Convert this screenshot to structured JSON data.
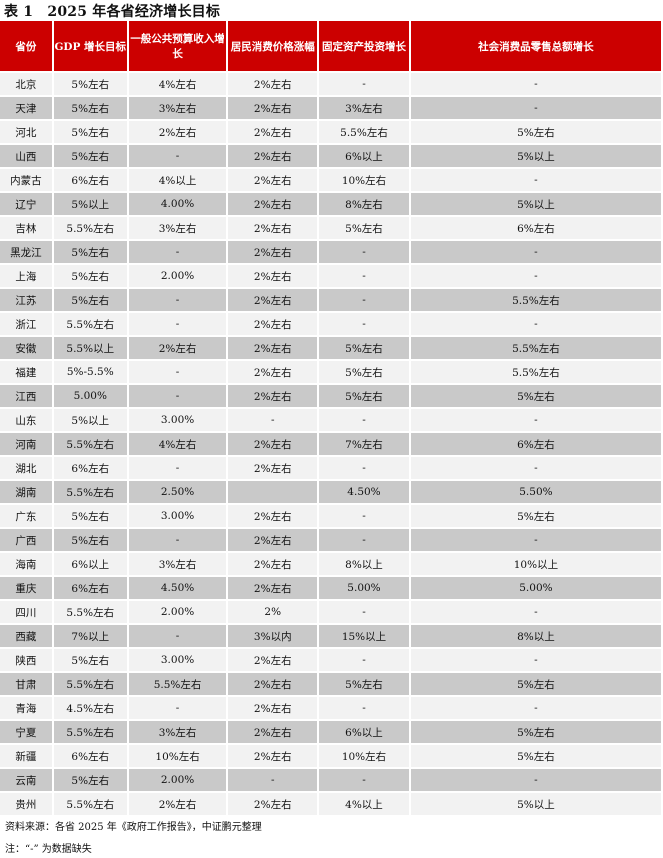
{
  "title": "表 1　2025 年各省经济增长目标",
  "columns": [
    "省份",
    "GDP 增长目标",
    "一般公共预算收入增长",
    "居民消费价格涨幅",
    "固定资产投资增长",
    "社会消费品零售总额增长"
  ],
  "rows": [
    [
      "北京",
      "5%左右",
      "4%左右",
      "2%左右",
      "-",
      "-"
    ],
    [
      "天津",
      "5%左右",
      "3%左右",
      "2%左右",
      "3%左右",
      "-"
    ],
    [
      "河北",
      "5%左右",
      "2%左右",
      "2%左右",
      "5.5%左右",
      "5%左右"
    ],
    [
      "山西",
      "5%左右",
      "-",
      "2%左右",
      "6%以上",
      "5%以上"
    ],
    [
      "内蒙古",
      "6%左右",
      "4%以上",
      "2%左右",
      "10%左右",
      "-"
    ],
    [
      "辽宁",
      "5%以上",
      "4.00%",
      "2%左右",
      "8%左右",
      "5%以上"
    ],
    [
      "吉林",
      "5.5%左右",
      "3%左右",
      "2%左右",
      "5%左右",
      "6%左右"
    ],
    [
      "黑龙江",
      "5%左右",
      "-",
      "2%左右",
      "-",
      "-"
    ],
    [
      "上海",
      "5%左右",
      "2.00%",
      "2%左右",
      "-",
      "-"
    ],
    [
      "江苏",
      "5%左右",
      "-",
      "2%左右",
      "-",
      "5.5%左右"
    ],
    [
      "浙江",
      "5.5%左右",
      "-",
      "2%左右",
      "-",
      "-"
    ],
    [
      "安徽",
      "5.5%以上",
      "2%左右",
      "2%左右",
      "5%左右",
      "5.5%左右"
    ],
    [
      "福建",
      "5%-5.5%",
      "-",
      "2%左右",
      "5%左右",
      "5.5%左右"
    ],
    [
      "江西",
      "5.00%",
      "-",
      "2%左右",
      "5%左右",
      "5%左右"
    ],
    [
      "山东",
      "5%以上",
      "3.00%",
      "-",
      "-",
      "-"
    ],
    [
      "河南",
      "5.5%左右",
      "4%左右",
      "2%左右",
      "7%左右",
      "6%左右"
    ],
    [
      "湖北",
      "6%左右",
      "-",
      "2%左右",
      "-",
      "-"
    ],
    [
      "湖南",
      "5.5%左右",
      "2.50%",
      "",
      "4.50%",
      "5.50%"
    ],
    [
      "广东",
      "5%左右",
      "3.00%",
      "2%左右",
      "-",
      "5%左右"
    ],
    [
      "广西",
      "5%左右",
      "-",
      "2%左右",
      "-",
      "-"
    ],
    [
      "海南",
      "6%以上",
      "3%左右",
      "2%左右",
      "8%以上",
      "10%以上"
    ],
    [
      "重庆",
      "6%左右",
      "4.50%",
      "2%左右",
      "5.00%",
      "5.00%"
    ],
    [
      "四川",
      "5.5%左右",
      "2.00%",
      "2%",
      "-",
      "-"
    ],
    [
      "西藏",
      "7%以上",
      "-",
      "3%以内",
      "15%以上",
      "8%以上"
    ],
    [
      "陕西",
      "5%左右",
      "3.00%",
      "2%左右",
      "-",
      "-"
    ],
    [
      "甘肃",
      "5.5%左右",
      "5.5%左右",
      "2%左右",
      "5%左右",
      "5%左右"
    ],
    [
      "青海",
      "4.5%左右",
      "-",
      "2%左右",
      "-",
      "-"
    ],
    [
      "宁夏",
      "5.5%左右",
      "3%左右",
      "2%左右",
      "6%以上",
      "5%左右"
    ],
    [
      "新疆",
      "6%左右",
      "10%左右",
      "2%左右",
      "10%左右",
      "5%左右"
    ],
    [
      "云南",
      "5%左右",
      "2.00%",
      "-",
      "-",
      "-"
    ],
    [
      "贵州",
      "5.5%左右",
      "2%左右",
      "2%左右",
      "4%以上",
      "5%以上"
    ]
  ],
  "source": "资料来源：各省 2025 年《政府工作报告》，中证鹏元整理",
  "note": "注：“-” 为数据缺失",
  "colors": {
    "header_bg": "#cc0000",
    "row_light": "#f2f2f2",
    "row_dark": "#c9c9c9"
  }
}
